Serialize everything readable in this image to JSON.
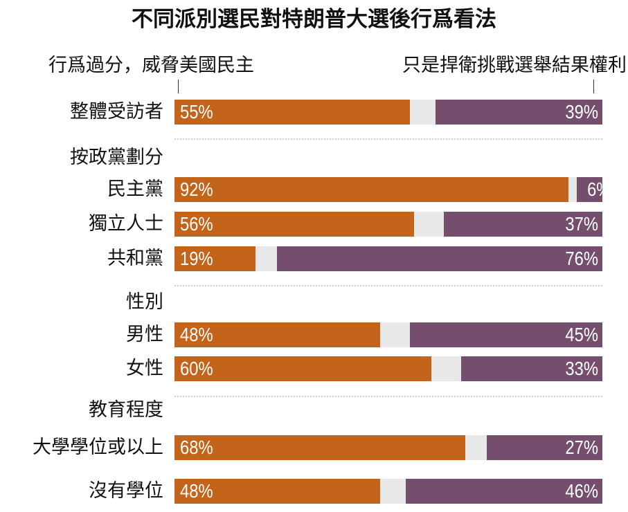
{
  "colors": {
    "left": "#C4641A",
    "right": "#744E6C",
    "neutral": "#E8E8E8"
  },
  "chart_data": {
    "type": "bar",
    "stacked": true,
    "orientation": "horizontal",
    "title": "不同派別選民對特朗普大選後行爲看法",
    "legend": {
      "left": "行爲過分，威脅美國民主",
      "right": "只是捍衛挑戰選舉結果權利"
    },
    "xlim": [
      0,
      100
    ],
    "groups": [
      {
        "heading": "",
        "rows": [
          {
            "label": "整體受訪者",
            "left": 55,
            "right": 39
          }
        ]
      },
      {
        "heading": "按政黨劃分",
        "rows": [
          {
            "label": "民主黨",
            "left": 92,
            "right": 6
          },
          {
            "label": "獨立人士",
            "left": 56,
            "right": 37
          },
          {
            "label": "共和黨",
            "left": 19,
            "right": 76
          }
        ]
      },
      {
        "heading": "性別",
        "rows": [
          {
            "label": "男性",
            "left": 48,
            "right": 45
          },
          {
            "label": "女性",
            "left": 60,
            "right": 33
          }
        ]
      },
      {
        "heading": "教育程度",
        "rows": [
          {
            "label": "大學學位或以上",
            "left": 68,
            "right": 27
          },
          {
            "label": "沒有學位",
            "left": 48,
            "right": 46
          }
        ]
      }
    ]
  }
}
